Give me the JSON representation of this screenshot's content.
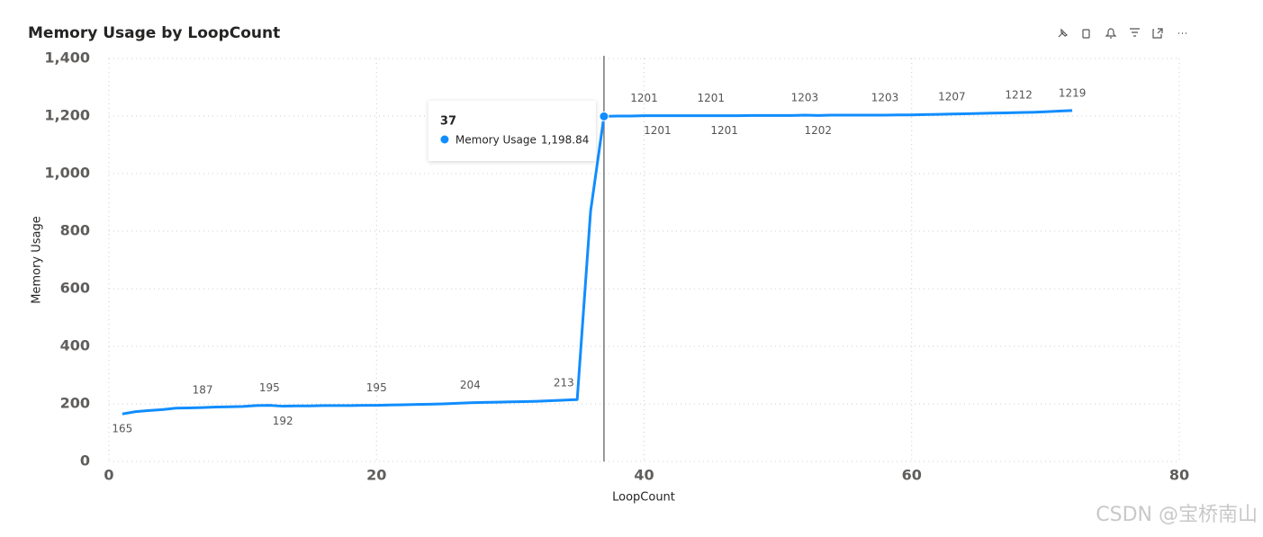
{
  "chart_data": {
    "type": "line",
    "title": "Memory Usage by LoopCount",
    "x_label": "LoopCount",
    "y_label": "Memory Usage",
    "x": [
      1,
      2,
      3,
      4,
      5,
      6,
      7,
      8,
      9,
      10,
      11,
      12,
      13,
      14,
      15,
      16,
      17,
      18,
      19,
      20,
      21,
      22,
      23,
      24,
      25,
      26,
      27,
      28,
      29,
      30,
      31,
      32,
      33,
      34,
      35,
      36,
      37,
      38,
      39,
      40,
      41,
      42,
      43,
      44,
      45,
      46,
      47,
      48,
      49,
      50,
      51,
      52,
      53,
      54,
      55,
      56,
      57,
      58,
      59,
      60,
      61,
      62,
      63,
      64,
      65,
      66,
      67,
      68,
      69,
      70,
      71,
      72
    ],
    "series": [
      {
        "name": "Memory Usage",
        "color": "#118DFF",
        "values": [
          165,
          173,
          177,
          180,
          185,
          186,
          187,
          189,
          190,
          191,
          194,
          195,
          192,
          193,
          193,
          194,
          194,
          194,
          195,
          195,
          196,
          197,
          198,
          199,
          200,
          202,
          204,
          205,
          206,
          207,
          208,
          209,
          211,
          213,
          215,
          869,
          1198.84,
          1200,
          1200,
          1201,
          1201,
          1201,
          1201,
          1201,
          1201,
          1201,
          1201,
          1202,
          1202,
          1202,
          1202,
          1203,
          1202,
          1203,
          1203,
          1203,
          1203,
          1203,
          1204,
          1204,
          1205,
          1206,
          1207,
          1208,
          1209,
          1210,
          1211,
          1212,
          1213,
          1215,
          1217,
          1219
        ],
        "value_labels": [
          "165",
          null,
          null,
          null,
          null,
          null,
          "187",
          null,
          null,
          null,
          null,
          "195",
          "192",
          null,
          null,
          null,
          null,
          null,
          null,
          "195",
          null,
          null,
          null,
          null,
          null,
          null,
          "204",
          null,
          null,
          null,
          null,
          null,
          null,
          "213",
          null,
          null,
          null,
          null,
          null,
          "1201",
          "1201",
          null,
          null,
          null,
          "1201",
          "1201",
          null,
          null,
          null,
          null,
          null,
          "1203",
          "1202",
          null,
          null,
          null,
          null,
          "1203",
          null,
          null,
          null,
          null,
          "1207",
          null,
          null,
          null,
          null,
          "1212",
          null,
          null,
          null,
          "1219"
        ]
      }
    ],
    "xlim": [
      0,
      80
    ],
    "xticks": [
      0,
      20,
      40,
      60,
      80
    ],
    "ylim": [
      0,
      1400
    ],
    "yticks": [
      0,
      200,
      400,
      600,
      800,
      {
        "value": 1000,
        "label": "1,000"
      },
      {
        "value": 1200,
        "label": "1,200"
      },
      {
        "value": 1400,
        "label": "1,400"
      }
    ],
    "grid": true,
    "tooltip": {
      "x": 37,
      "value": 1198.84,
      "value_label": "1,198.84"
    },
    "watermark": "CSDN @宝桥南山"
  }
}
